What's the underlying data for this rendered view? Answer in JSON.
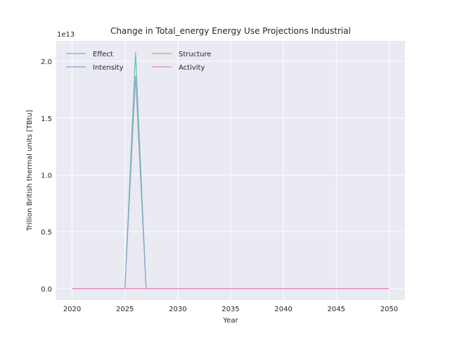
{
  "chart_data": {
    "type": "line",
    "title": "Change in Total_energy Energy Use Projections Industrial",
    "xlabel": "Year",
    "ylabel": "Trillion British thermal units [TBtu]",
    "y_offset_label": "1e13",
    "xlim": [
      2018.5,
      2051.5
    ],
    "ylim": [
      -1000000000000.0,
      21800000000000.0
    ],
    "xticks": [
      2020,
      2025,
      2030,
      2035,
      2040,
      2045,
      2050
    ],
    "yticks": [
      0,
      5000000000000.0,
      10000000000000.0,
      15000000000000.0,
      20000000000000.0
    ],
    "ytick_labels": [
      "0.0",
      "0.5",
      "1.0",
      "1.5",
      "2.0"
    ],
    "grid": true,
    "legend_position": "top-left",
    "x": [
      2020,
      2021,
      2022,
      2023,
      2024,
      2025,
      2026,
      2027,
      2028,
      2029,
      2030,
      2031,
      2032,
      2033,
      2034,
      2035,
      2036,
      2037,
      2038,
      2039,
      2040,
      2041,
      2042,
      2043,
      2044,
      2045,
      2046,
      2047,
      2048,
      2049,
      2050
    ],
    "series": [
      {
        "name": "Effect",
        "color": "#66c2a5",
        "values": [
          0,
          0,
          0,
          0,
          0,
          0,
          20800000000000.0,
          0,
          0,
          0,
          0,
          0,
          0,
          0,
          0,
          0,
          0,
          0,
          0,
          0,
          0,
          0,
          0,
          0,
          0,
          0,
          0,
          0,
          0,
          0,
          0
        ]
      },
      {
        "name": "Structure",
        "color": "#fc8d62",
        "values": [
          0,
          0,
          0,
          0,
          0,
          0,
          0,
          0,
          0,
          0,
          0,
          0,
          0,
          0,
          0,
          0,
          0,
          0,
          0,
          0,
          0,
          0,
          0,
          0,
          0,
          0,
          0,
          0,
          0,
          0,
          0
        ]
      },
      {
        "name": "Intensity",
        "color": "#8da0cb",
        "values": [
          0,
          0,
          0,
          0,
          0,
          0,
          18700000000000.0,
          0,
          0,
          0,
          0,
          0,
          0,
          0,
          0,
          0,
          0,
          0,
          0,
          0,
          0,
          0,
          0,
          0,
          0,
          0,
          0,
          0,
          0,
          0,
          0
        ]
      },
      {
        "name": "Activity",
        "color": "#e78ac3",
        "values": [
          0,
          0,
          0,
          0,
          0,
          0,
          0,
          0,
          0,
          0,
          0,
          0,
          0,
          0,
          0,
          0,
          0,
          0,
          0,
          0,
          0,
          0,
          0,
          0,
          0,
          0,
          0,
          0,
          0,
          0,
          0
        ]
      }
    ],
    "legend_columns": 2,
    "background": "#eaeaf2",
    "gridcolor": "#ffffff"
  }
}
